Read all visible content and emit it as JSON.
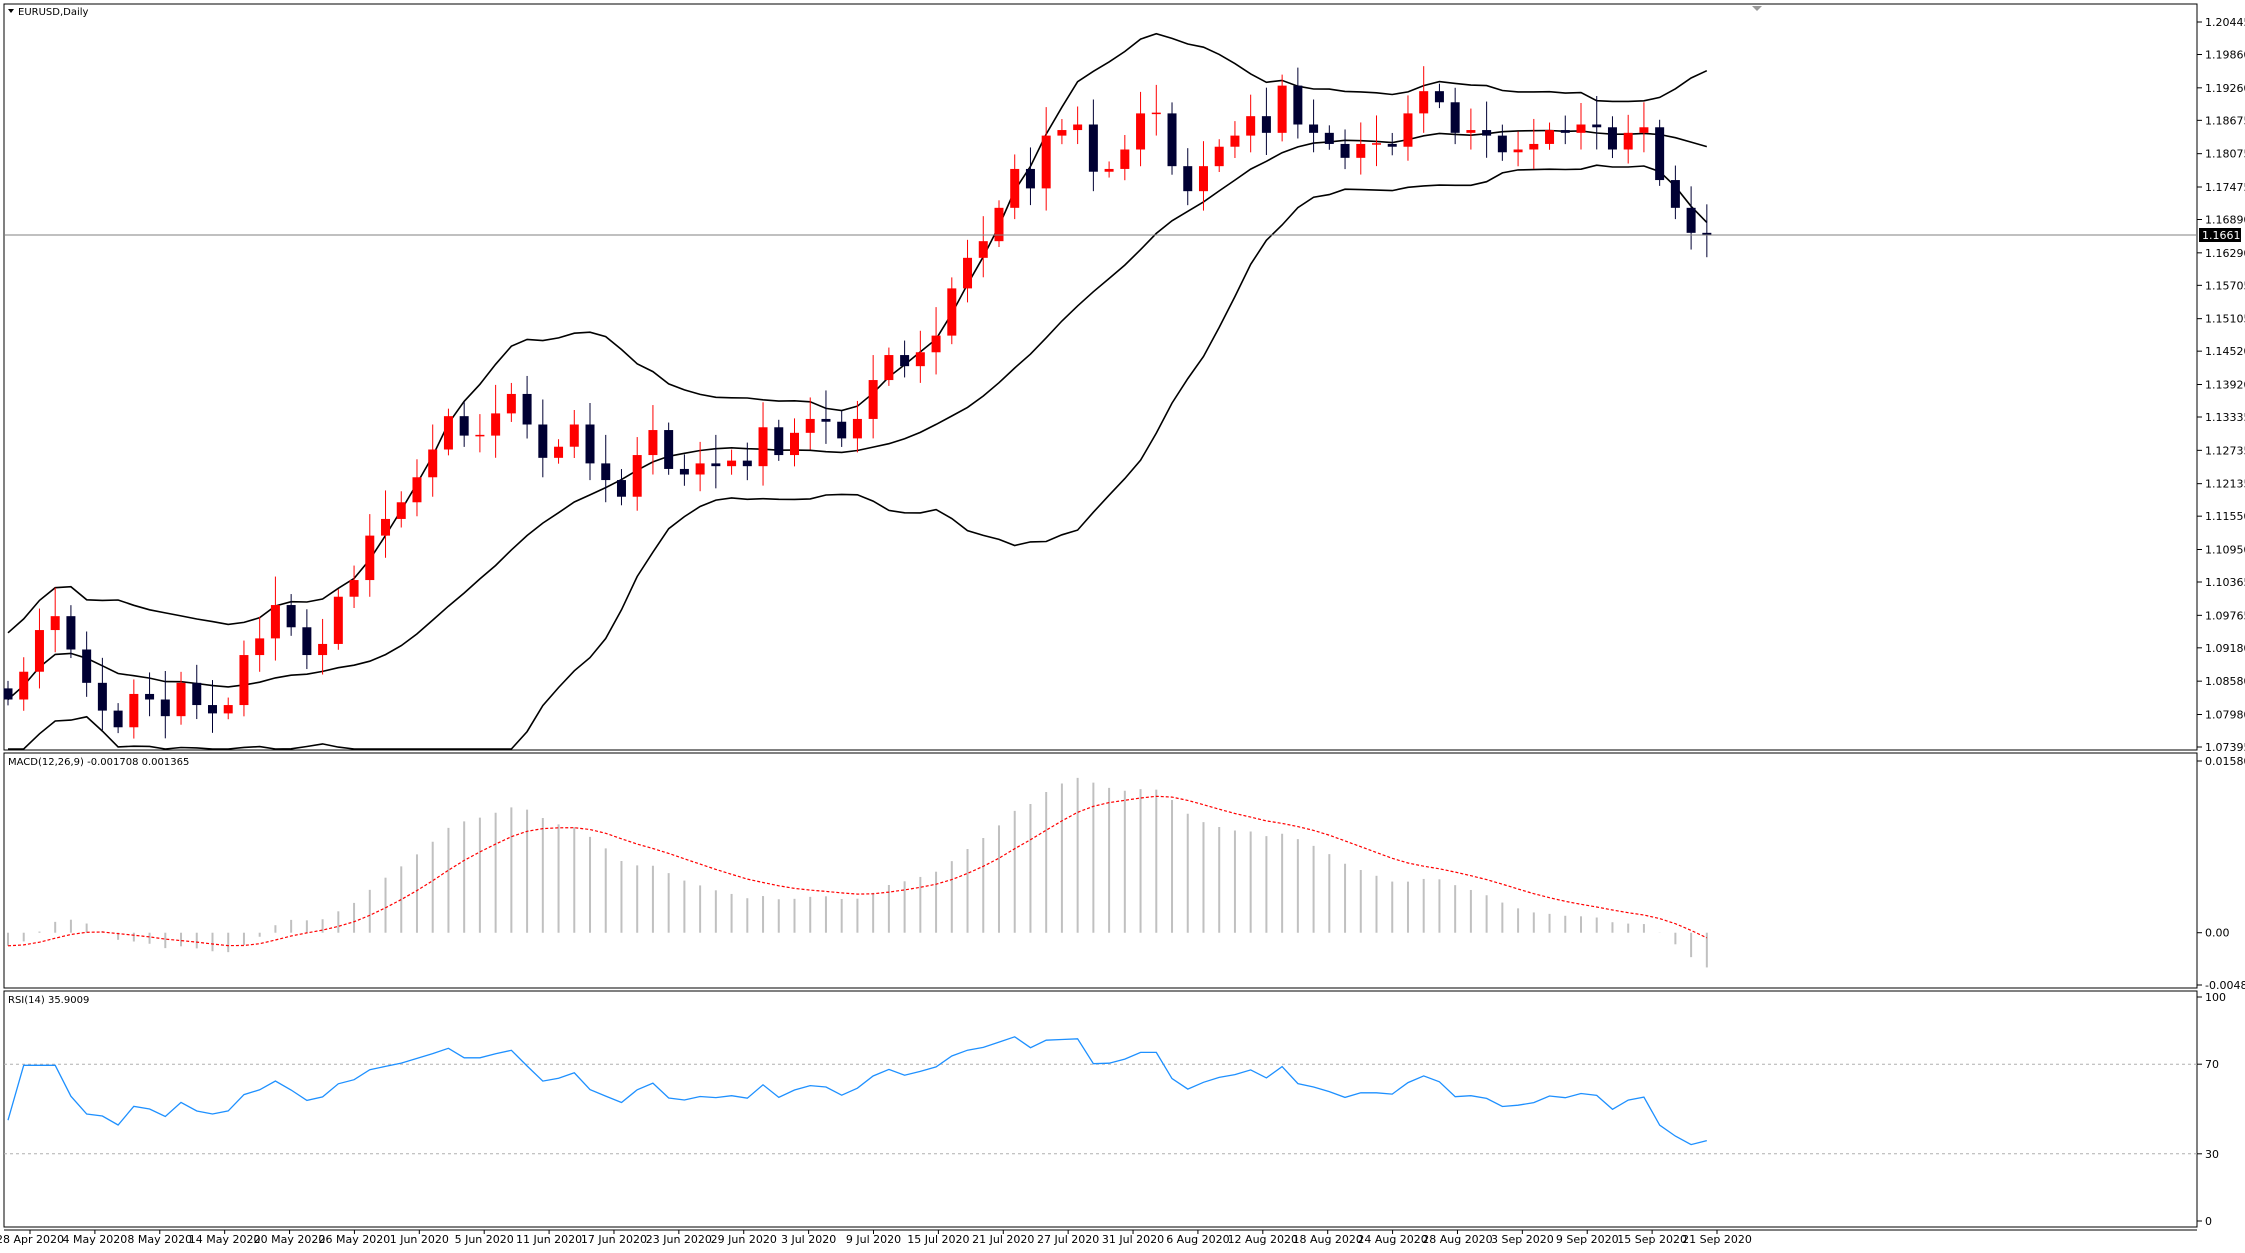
{
  "symbol_title": "EURUSD,Daily",
  "current_price_label": "1.16611",
  "chart_data": [
    {
      "type": "candlestick",
      "panel": "price",
      "title": "EURUSD,Daily",
      "y_tick_labels": [
        "1.20445",
        "1.19860",
        "1.19260",
        "1.18675",
        "1.18075",
        "1.17475",
        "1.16890",
        "1.16290",
        "1.15705",
        "1.15105",
        "1.14520",
        "1.13920",
        "1.13335",
        "1.12735",
        "1.12135",
        "1.11550",
        "1.10950",
        "1.10365",
        "1.09765",
        "1.09180",
        "1.08580",
        "1.07980",
        "1.07395"
      ],
      "ylim": [
        1.07395,
        1.20445
      ],
      "current_price": 1.16611,
      "x_tick_labels": [
        "28 Apr 2020",
        "4 May 2020",
        "8 May 2020",
        "14 May 2020",
        "20 May 2020",
        "26 May 2020",
        "1 Jun 2020",
        "5 Jun 2020",
        "11 Jun 2020",
        "17 Jun 2020",
        "23 Jun 2020",
        "29 Jun 2020",
        "3 Jul 2020",
        "9 Jul 2020",
        "15 Jul 2020",
        "21 Jul 2020",
        "27 Jul 2020",
        "31 Jul 2020",
        "6 Aug 2020",
        "12 Aug 2020",
        "18 Aug 2020",
        "24 Aug 2020",
        "28 Aug 2020",
        "3 Sep 2020",
        "9 Sep 2020",
        "15 Sep 2020",
        "21 Sep 2020"
      ],
      "bull_color": "#ff0000",
      "bear_color": "#000033",
      "closes": [
        1.0825,
        1.0875,
        1.095,
        1.0975,
        1.0915,
        1.0855,
        1.0805,
        1.0775,
        1.0835,
        1.0825,
        1.0795,
        1.0855,
        1.0815,
        1.08,
        1.0815,
        1.0905,
        1.0935,
        1.0995,
        1.0955,
        1.0905,
        1.0925,
        1.101,
        1.104,
        1.112,
        1.115,
        1.118,
        1.1225,
        1.1275,
        1.1335,
        1.13,
        1.13,
        1.134,
        1.1375,
        1.132,
        1.126,
        1.128,
        1.132,
        1.125,
        1.122,
        1.119,
        1.1265,
        1.131,
        1.124,
        1.123,
        1.125,
        1.1245,
        1.1255,
        1.1245,
        1.1315,
        1.1265,
        1.1305,
        1.133,
        1.1325,
        1.1295,
        1.133,
        1.14,
        1.1445,
        1.1425,
        1.145,
        1.148,
        1.1565,
        1.162,
        1.165,
        1.171,
        1.178,
        1.1745,
        1.184,
        1.185,
        1.186,
        1.1775,
        1.178,
        1.1815,
        1.188,
        1.188,
        1.1785,
        1.174,
        1.1785,
        1.182,
        1.184,
        1.1875,
        1.1845,
        1.193,
        1.186,
        1.1845,
        1.1825,
        1.18,
        1.1825,
        1.1825,
        1.182,
        1.188,
        1.192,
        1.19,
        1.1845,
        1.185,
        1.184,
        1.181,
        1.1815,
        1.1825,
        1.185,
        1.1845,
        1.186,
        1.1855,
        1.1815,
        1.1845,
        1.1855,
        1.176,
        1.171,
        1.1665,
        1.1661
      ],
      "bollinger": {
        "period": 20
      }
    },
    {
      "type": "macd",
      "panel": "macd",
      "title": "MACD(12,26,9) -0.001708 0.001365",
      "params": [
        12,
        26,
        9
      ],
      "main_value": -0.001708,
      "signal_value": 0.001365,
      "y_tick_labels": [
        "0.015801",
        "0.00",
        "-0.004811"
      ],
      "ylim": [
        -0.004811,
        0.015801
      ],
      "histogram_color": "#c0c0c0",
      "signal_color": "#ff0000"
    },
    {
      "type": "line",
      "panel": "rsi",
      "title": "RSI(14) 35.9009",
      "period": 14,
      "value": 35.9009,
      "y_tick_labels": [
        "100",
        "70",
        "30",
        "0"
      ],
      "ylim": [
        0,
        100
      ],
      "levels": [
        70,
        30
      ],
      "color": "#1e90ff"
    }
  ]
}
